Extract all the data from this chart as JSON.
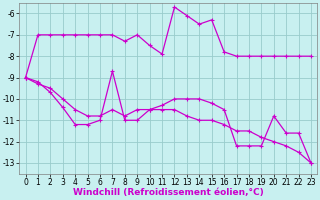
{
  "bg_color": "#c8f0f0",
  "grid_color": "#99cccc",
  "line_color": "#cc00cc",
  "marker": "+",
  "x_ticks": [
    0,
    1,
    2,
    3,
    4,
    5,
    6,
    7,
    8,
    9,
    10,
    11,
    12,
    13,
    14,
    15,
    16,
    17,
    18,
    19,
    20,
    21,
    22,
    23
  ],
  "ylim": [
    -13.5,
    -5.5
  ],
  "xlim": [
    -0.5,
    23.5
  ],
  "yticks": [
    -13,
    -12,
    -11,
    -10,
    -9,
    -8,
    -7,
    -6
  ],
  "xlabel": "Windchill (Refroidissement éolien,°C)",
  "line1_x": [
    0,
    1,
    2,
    3,
    4,
    5,
    6,
    7,
    8,
    9,
    10,
    11,
    12,
    13,
    14,
    15,
    16,
    17,
    18,
    19,
    20,
    21,
    22,
    23
  ],
  "line1_y": [
    -9.0,
    -7.0,
    -7.0,
    -7.0,
    -7.0,
    -7.0,
    -7.0,
    -7.0,
    -7.3,
    -7.0,
    -7.5,
    -7.9,
    -5.7,
    -6.1,
    -6.5,
    -6.3,
    -7.8,
    -8.0,
    -8.0,
    -8.0,
    -8.0,
    -8.0,
    -8.0,
    -8.0
  ],
  "line2_x": [
    0,
    1,
    2,
    3,
    4,
    5,
    6,
    7,
    8,
    9,
    10,
    11,
    12,
    13,
    14,
    15,
    16,
    17,
    18,
    19,
    20,
    21,
    22,
    23
  ],
  "line2_y": [
    -9.0,
    -9.2,
    -9.7,
    -10.4,
    -11.2,
    -11.2,
    -11.0,
    -8.7,
    -11.0,
    -11.0,
    -10.5,
    -10.3,
    -10.0,
    -10.0,
    -10.0,
    -10.2,
    -10.5,
    -12.2,
    -12.2,
    -12.2,
    -10.8,
    -11.6,
    -11.6,
    -13.0
  ],
  "line3_x": [
    0,
    1,
    2,
    3,
    4,
    5,
    6,
    7,
    8,
    9,
    10,
    11,
    12,
    13,
    14,
    15,
    16,
    17,
    18,
    19,
    20,
    21,
    22,
    23
  ],
  "line3_y": [
    -9.0,
    -9.3,
    -9.5,
    -10.0,
    -10.5,
    -10.8,
    -10.8,
    -10.5,
    -10.8,
    -10.5,
    -10.5,
    -10.5,
    -10.5,
    -10.8,
    -11.0,
    -11.0,
    -11.2,
    -11.5,
    -11.5,
    -11.8,
    -12.0,
    -12.2,
    -12.5,
    -13.0
  ],
  "tick_fontsize": 5.5,
  "xlabel_fontsize": 6.5,
  "lw": 0.9,
  "ms": 2.5
}
